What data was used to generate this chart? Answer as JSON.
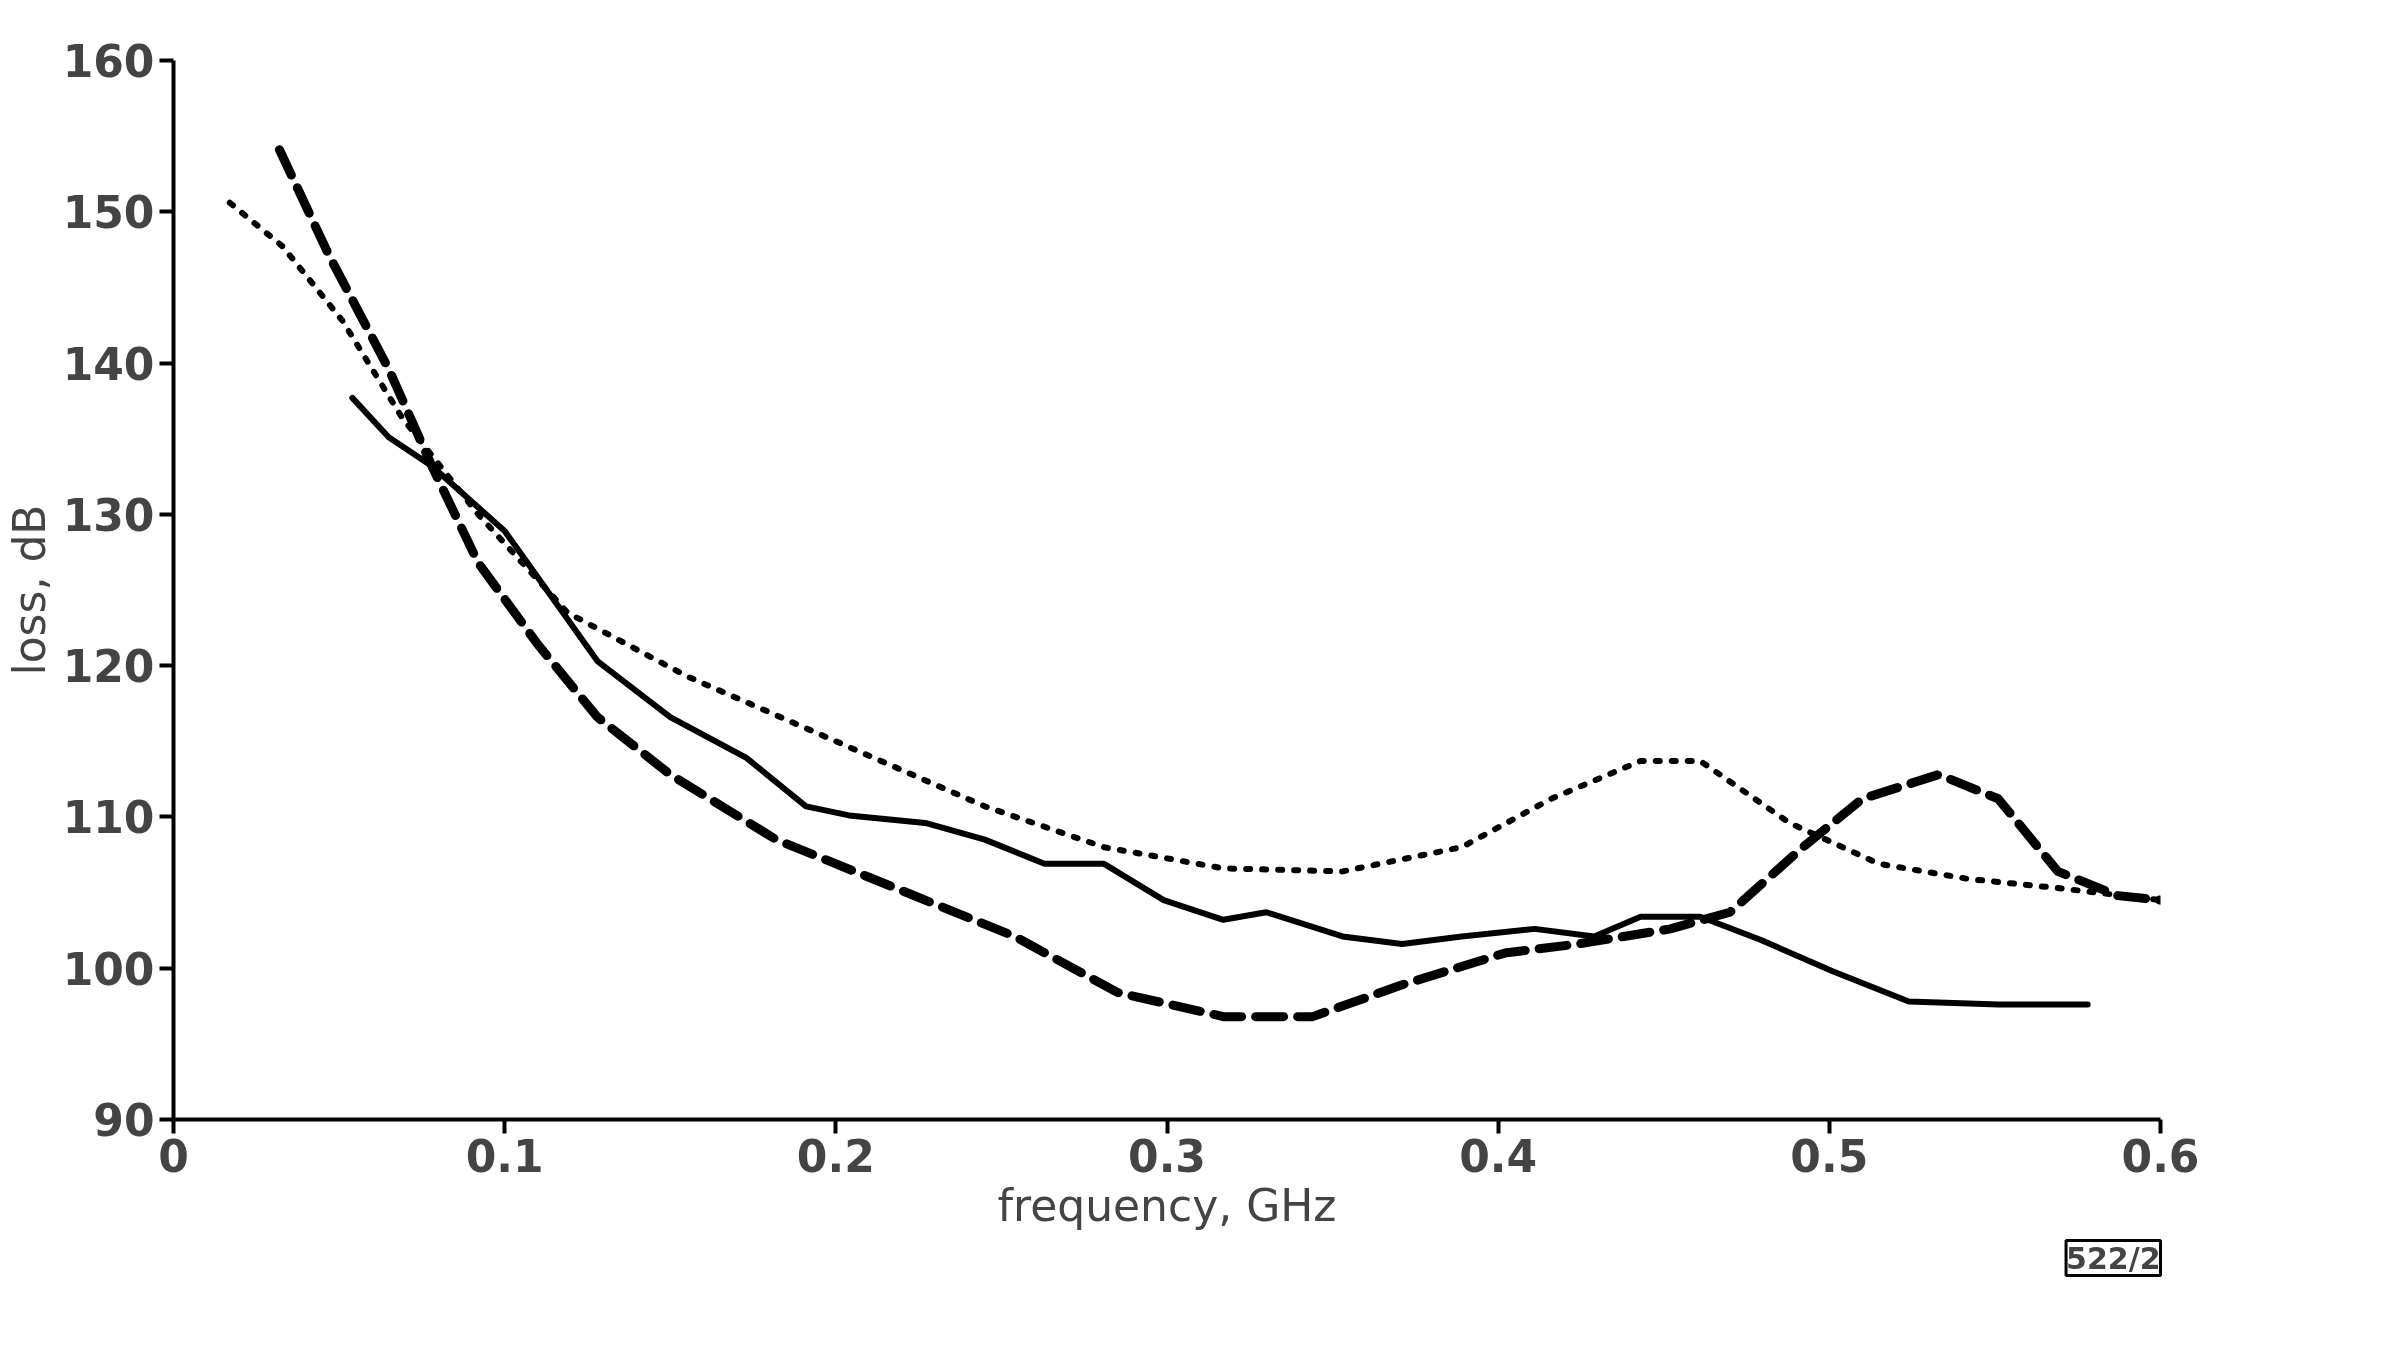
{
  "chart_data": {
    "type": "line",
    "xlabel": "frequency, GHz",
    "ylabel": "loss, dB",
    "xlim": [
      0,
      0.6
    ],
    "ylim": [
      90,
      160
    ],
    "xticks": [
      0,
      0.1,
      0.2,
      0.3,
      0.4,
      0.5,
      0.6
    ],
    "yticks": [
      90,
      100,
      110,
      120,
      130,
      140,
      150,
      160
    ],
    "grid": false,
    "marker": "none",
    "annotations": [
      "522/2"
    ],
    "series": [
      {
        "color": "#000000",
        "line_style": "solid",
        "x": [
          0.054,
          0.065,
          0.078,
          0.1,
          0.128,
          0.15,
          0.173,
          0.191,
          0.204,
          0.227,
          0.245,
          0.263,
          0.281,
          0.299,
          0.317,
          0.33,
          0.353,
          0.371,
          0.389,
          0.411,
          0.429,
          0.443,
          0.461,
          0.479,
          0.501,
          0.524,
          0.551,
          0.578
        ],
        "values": [
          137.7,
          135.1,
          133.2,
          128.9,
          120.3,
          116.6,
          113.9,
          110.7,
          110.1,
          109.6,
          108.5,
          106.9,
          106.9,
          104.5,
          103.2,
          103.7,
          102.1,
          101.6,
          102.1,
          102.6,
          102.1,
          103.4,
          103.4,
          101.9,
          99.8,
          97.8,
          97.6,
          97.6
        ]
      },
      {
        "color": "#000000",
        "line_style": "dashed",
        "x": [
          0.032,
          0.047,
          0.065,
          0.078,
          0.092,
          0.11,
          0.128,
          0.15,
          0.182,
          0.218,
          0.254,
          0.285,
          0.317,
          0.344,
          0.371,
          0.402,
          0.424,
          0.452,
          0.47,
          0.492,
          0.51,
          0.533,
          0.551,
          0.569,
          0.587,
          0.6
        ],
        "values": [
          154.1,
          147.1,
          139.6,
          133.2,
          126.8,
          121.4,
          116.6,
          112.8,
          108.5,
          105.3,
          102.1,
          98.4,
          96.8,
          96.8,
          98.9,
          101.0,
          101.6,
          102.6,
          103.7,
          108.0,
          111.2,
          112.8,
          111.2,
          106.4,
          104.8,
          104.5
        ]
      },
      {
        "color": "#000000",
        "line_style": "dotted",
        "x": [
          0.017,
          0.033,
          0.051,
          0.069,
          0.092,
          0.119,
          0.155,
          0.2,
          0.245,
          0.281,
          0.317,
          0.353,
          0.389,
          0.416,
          0.443,
          0.461,
          0.488,
          0.515,
          0.542,
          0.569,
          0.6
        ],
        "values": [
          150.6,
          147.7,
          142.8,
          136.4,
          130.0,
          123.5,
          119.3,
          115.0,
          110.7,
          108.0,
          106.6,
          106.4,
          108.0,
          111.2,
          113.7,
          113.7,
          109.6,
          106.9,
          105.9,
          105.3,
          104.5
        ]
      }
    ]
  }
}
